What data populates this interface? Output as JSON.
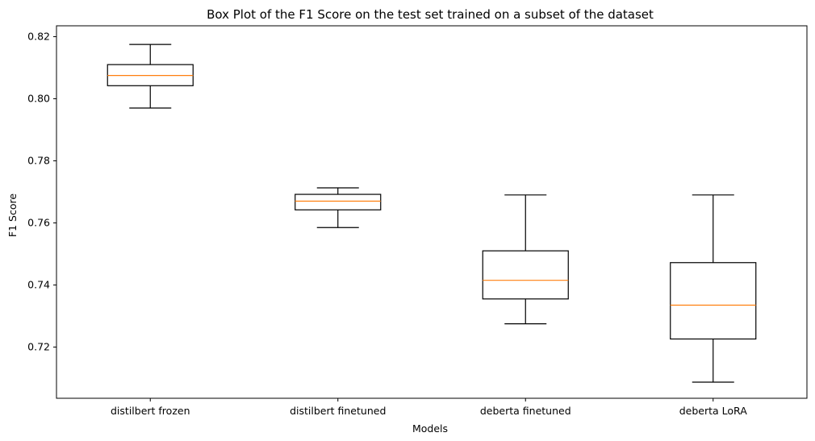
{
  "chart_data": {
    "type": "box",
    "title": "Box Plot of the F1 Score on the test set trained on a subset of the dataset",
    "xlabel": "Models",
    "ylabel": "F1 Score",
    "ylim": [
      0.7035,
      0.8235
    ],
    "yticks": [
      "0.72",
      "0.74",
      "0.76",
      "0.78",
      "0.80",
      "0.82"
    ],
    "grid": false,
    "categories": [
      "distilbert frozen",
      "distilbert finetuned",
      "deberta finetuned",
      "deberta LoRA"
    ],
    "series": [
      {
        "category": "distilbert frozen",
        "whisker_low": 0.797,
        "q1": 0.8042,
        "median": 0.8075,
        "q3": 0.811,
        "whisker_high": 0.8175
      },
      {
        "category": "distilbert finetuned",
        "whisker_low": 0.7585,
        "q1": 0.7642,
        "median": 0.767,
        "q3": 0.7692,
        "whisker_high": 0.7713
      },
      {
        "category": "deberta finetuned",
        "whisker_low": 0.7275,
        "q1": 0.7355,
        "median": 0.7415,
        "q3": 0.751,
        "whisker_high": 0.769
      },
      {
        "category": "deberta LoRA",
        "whisker_low": 0.7087,
        "q1": 0.7226,
        "median": 0.7335,
        "q3": 0.7472,
        "whisker_high": 0.769
      }
    ],
    "colors": {
      "box": "#000000",
      "median": "#ff7f0e"
    }
  }
}
